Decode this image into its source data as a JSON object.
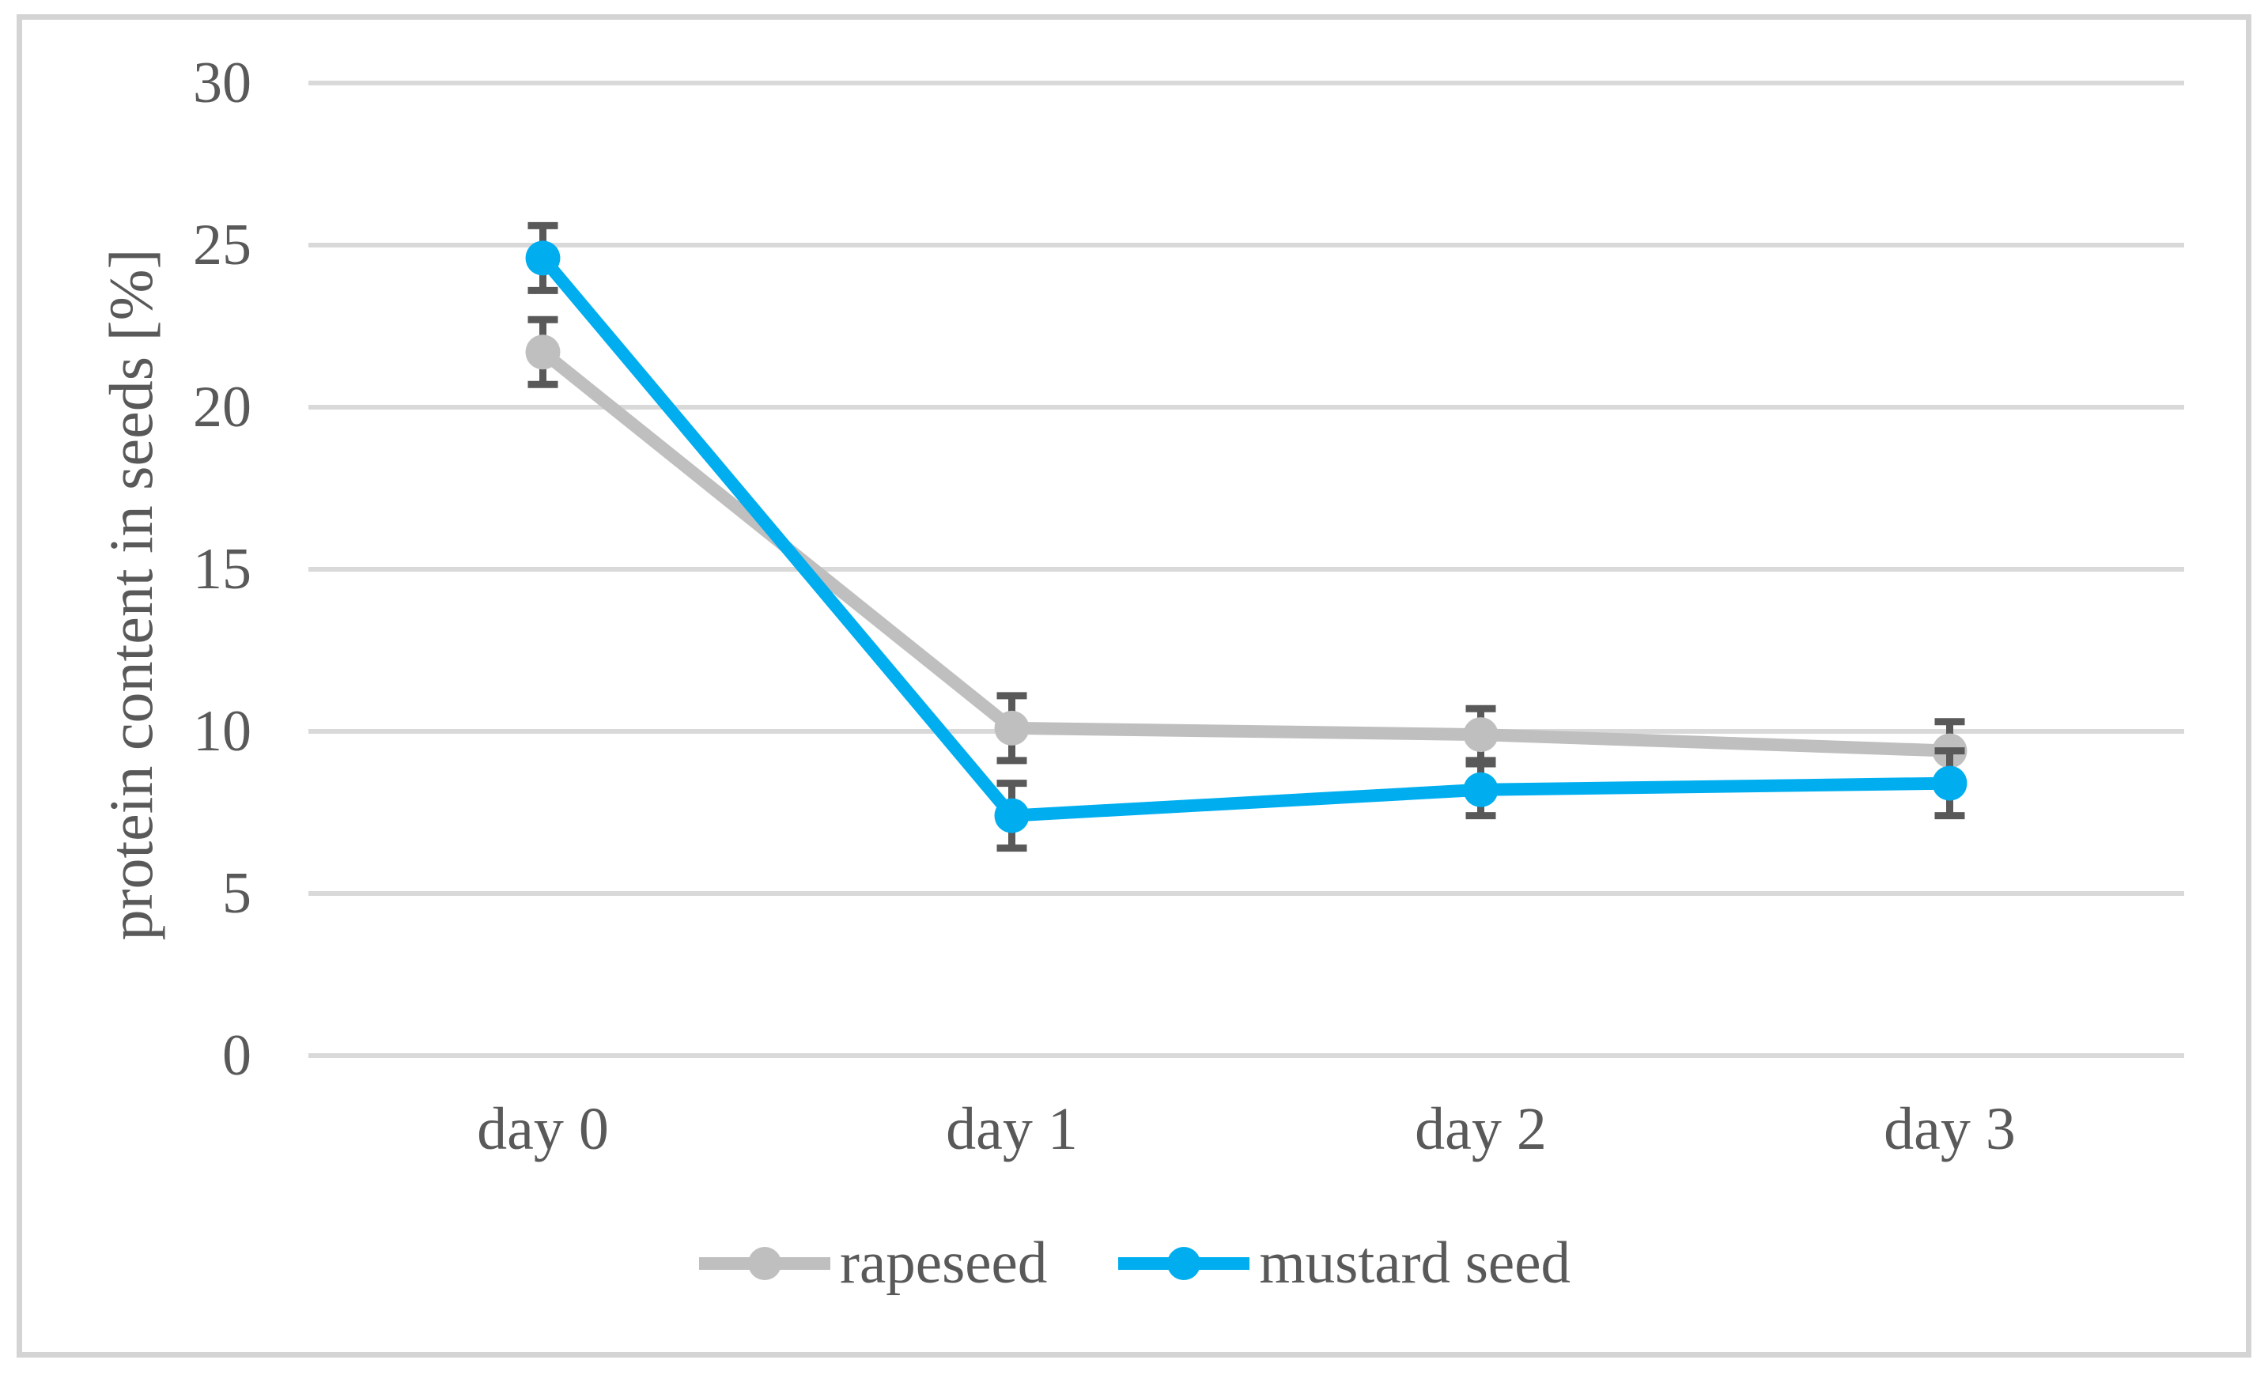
{
  "figure": {
    "background_color": "#ffffff",
    "border_color": "#d4d4d4",
    "text_color": "#595959"
  },
  "chart_data": {
    "type": "line",
    "title": "",
    "xlabel": "",
    "ylabel": "protein content in seeds [%]",
    "categories": [
      "day 0",
      "day 1",
      "day 2",
      "day 3"
    ],
    "series": [
      {
        "name": "rapeseed",
        "color": "#bfbfbf",
        "values": [
          21.7,
          10.1,
          9.9,
          9.4
        ],
        "error_bars": [
          1.0,
          1.0,
          0.8,
          0.9
        ]
      },
      {
        "name": "mustard seed",
        "color": "#00aeef",
        "values": [
          24.6,
          7.4,
          8.2,
          8.4
        ],
        "error_bars": [
          1.0,
          1.0,
          0.8,
          1.0
        ]
      }
    ],
    "ylim": [
      0,
      30
    ],
    "yticks": [
      0,
      5,
      10,
      15,
      20,
      25,
      30
    ],
    "grid": "horizontal",
    "gridline_color": "#d9d9d9",
    "error_bar_color": "#595959",
    "legend_position": "bottom",
    "marker": "circle"
  }
}
